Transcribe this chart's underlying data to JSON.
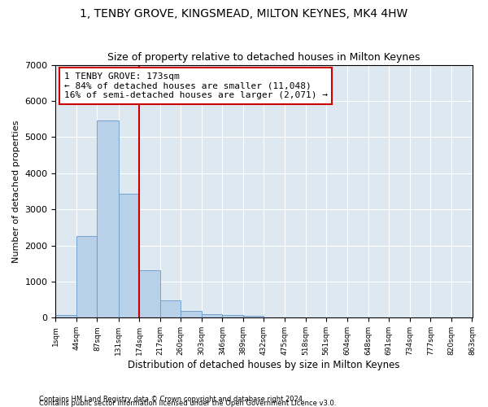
{
  "title": "1, TENBY GROVE, KINGSMEAD, MILTON KEYNES, MK4 4HW",
  "subtitle": "Size of property relative to detached houses in Milton Keynes",
  "xlabel": "Distribution of detached houses by size in Milton Keynes",
  "ylabel": "Number of detached properties",
  "footer_line1": "Contains HM Land Registry data © Crown copyright and database right 2024.",
  "footer_line2": "Contains public sector information licensed under the Open Government Licence v3.0.",
  "bar_edges": [
    1,
    44,
    87,
    131,
    174,
    217,
    260,
    303,
    346,
    389,
    432,
    475,
    518,
    561,
    604,
    648,
    691,
    734,
    777,
    820,
    863
  ],
  "bar_values": [
    75,
    2250,
    5450,
    3430,
    1310,
    480,
    190,
    95,
    70,
    55,
    0,
    0,
    0,
    0,
    0,
    0,
    0,
    0,
    0,
    0
  ],
  "bar_color": "#b8d0e8",
  "bar_edge_color": "#6699cc",
  "vline_x": 173,
  "vline_color": "#cc0000",
  "annotation_text": "1 TENBY GROVE: 173sqm\n← 84% of detached houses are smaller (11,048)\n16% of semi-detached houses are larger (2,071) →",
  "annotation_box_color": "#ffffff",
  "annotation_box_edge": "#cc0000",
  "ylim": [
    0,
    7000
  ],
  "yticks": [
    0,
    1000,
    2000,
    3000,
    4000,
    5000,
    6000,
    7000
  ],
  "title_fontsize": 10,
  "subtitle_fontsize": 9,
  "axis_bg_color": "#dde8f0",
  "fig_bg_color": "#ffffff"
}
